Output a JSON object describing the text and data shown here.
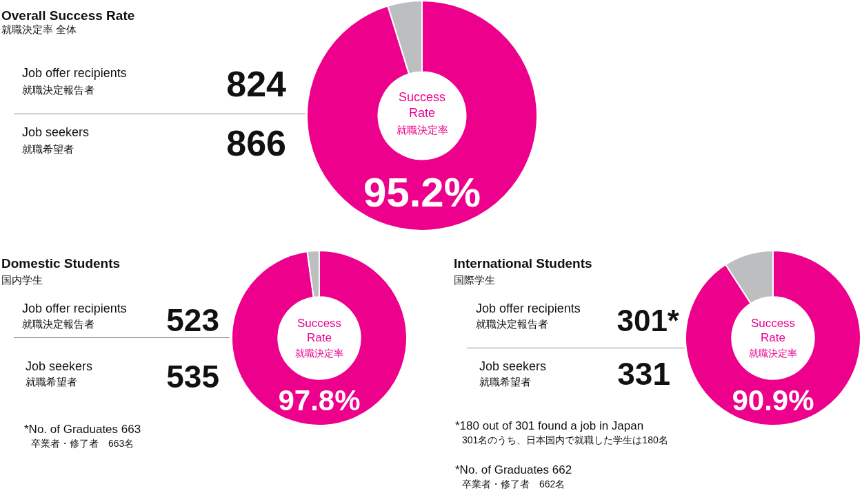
{
  "chart_data": [
    {
      "type": "donut",
      "title": "Overall Success Rate",
      "categories": [
        null,
        null
      ],
      "values": [
        95.2,
        4.8
      ],
      "colors": [
        "#ec008c",
        "#bcbec0"
      ],
      "value_labels": [
        "95.2%",
        null
      ],
      "annotations": [
        "就職決定率 全体",
        "Success Rate",
        "就職決定率",
        "Job offer recipients",
        "就職決定報告者",
        "824",
        "Job seekers",
        "就職希望者",
        "866"
      ]
    },
    {
      "type": "donut",
      "title": "Domestic Students",
      "categories": [
        null,
        null
      ],
      "values": [
        97.8,
        2.2
      ],
      "colors": [
        "#ec008c",
        "#bcbec0"
      ],
      "value_labels": [
        "97.8%",
        null
      ],
      "annotations": [
        "国内学生",
        "Success Rate",
        "就職決定率",
        "Job offer recipients",
        "就職決定報告者",
        "523",
        "Job seekers",
        "就職希望者",
        "535",
        "*No. of Graduates 663",
        "卒業者・修了者　663名"
      ]
    },
    {
      "type": "donut",
      "title": "International Students",
      "categories": [
        null,
        null
      ],
      "values": [
        90.9,
        9.1
      ],
      "colors": [
        "#ec008c",
        "#bcbec0"
      ],
      "value_labels": [
        "90.9%",
        null
      ],
      "annotations": [
        "国際学生",
        "Success Rate",
        "就職決定率",
        "Job offer recipients",
        "就職決定報告者",
        "301*",
        "Job seekers",
        "就職希望者",
        "331",
        "*180 out of 301 found a job in Japan",
        "301名のうち、日本国内で就職した学生は180名",
        "*No. of Graduates 662",
        "卒業者・修了者　662名"
      ]
    }
  ]
}
